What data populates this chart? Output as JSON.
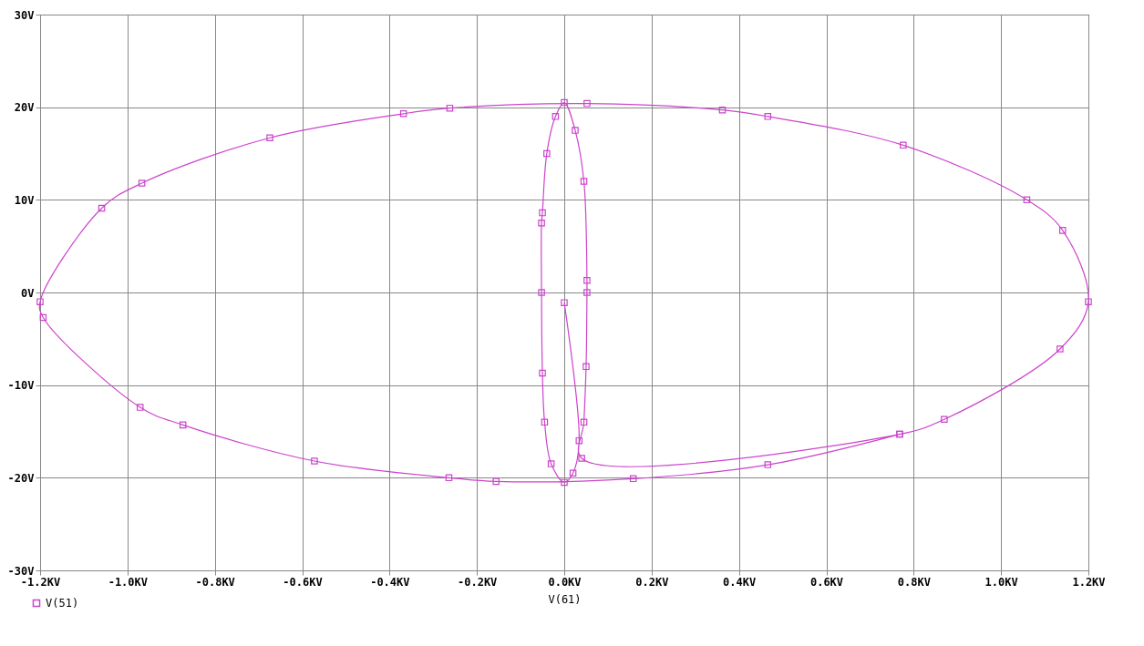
{
  "chart_data": {
    "type": "line",
    "xlabel": "V(61)",
    "marker": "square",
    "grid": true,
    "legend": "bottom left",
    "xlim": [
      -1.2,
      1.2
    ],
    "xticks": [
      {
        "value": -1.2,
        "label": "-1.2KV"
      },
      {
        "value": -1.0,
        "label": "-1.0KV"
      },
      {
        "value": -0.8,
        "label": "-0.8KV"
      },
      {
        "value": -0.6,
        "label": "-0.6KV"
      },
      {
        "value": -0.4,
        "label": "-0.4KV"
      },
      {
        "value": -0.2,
        "label": "-0.2KV"
      },
      {
        "value": 0,
        "label": "0.0KV"
      },
      {
        "value": 0.2,
        "label": "0.2KV"
      },
      {
        "value": 0.4,
        "label": "0.4KV"
      },
      {
        "value": 0.6,
        "label": "0.6KV"
      },
      {
        "value": 0.8,
        "label": "0.8KV"
      },
      {
        "value": 1.0,
        "label": "1.0KV"
      },
      {
        "value": 1.2,
        "label": "1.2KV"
      }
    ],
    "ylim": [
      -30,
      30
    ],
    "yticks": [
      {
        "value": -30,
        "label": "-30V"
      },
      {
        "value": -20,
        "label": "-20V"
      },
      {
        "value": -10,
        "label": "-10V"
      },
      {
        "value": 0,
        "label": "0V"
      },
      {
        "value": 10,
        "label": "10V"
      },
      {
        "value": 20,
        "label": "20V"
      },
      {
        "value": 30,
        "label": "30V"
      }
    ],
    "series": [
      {
        "name": "V(51)",
        "color": "#cc44cc",
        "x": [
          0.0,
          0.034,
          0.02,
          0.0,
          -0.03,
          -0.045,
          -0.05,
          -0.052,
          -0.052,
          -0.05,
          -0.04,
          -0.02,
          0.0,
          0.025,
          0.045,
          0.052,
          0.052,
          0.05,
          0.045,
          0.04,
          0.768,
          0.87,
          1.135,
          1.2,
          1.141,
          1.059,
          0.776,
          0.466,
          0.362,
          0.052,
          -0.262,
          -0.368,
          -0.674,
          -0.967,
          -1.059,
          -1.2,
          -1.193,
          -0.971,
          -0.873,
          -0.572,
          -0.264,
          -0.156,
          0.158,
          0.466,
          0.768
        ],
        "values": [
          -1.1,
          -16.0,
          -19.5,
          -20.5,
          -18.5,
          -14,
          -8.7,
          0,
          7.5,
          8.6,
          15,
          19,
          20.5,
          17.5,
          12,
          1.3,
          0,
          -8,
          -14,
          -17.9,
          -15.3,
          -13.7,
          -6.1,
          -1,
          6.7,
          10.0,
          15.9,
          19.0,
          19.7,
          20.4,
          19.9,
          19.3,
          16.7,
          11.8,
          9.1,
          -1,
          -2.7,
          -12.4,
          -14.3,
          -18.2,
          -20.0,
          -20.4,
          -20.1,
          -18.6,
          -15.3
        ]
      }
    ]
  }
}
